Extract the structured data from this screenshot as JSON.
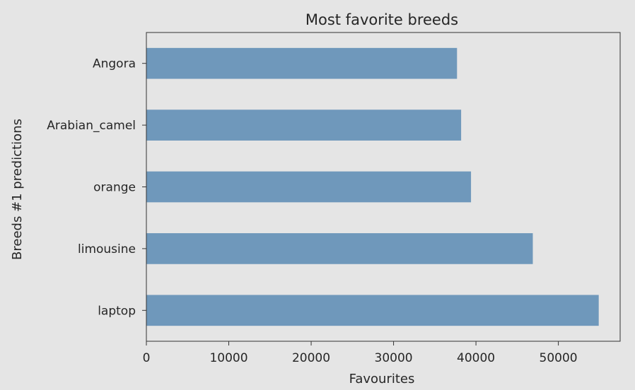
{
  "chart_data": {
    "type": "bar",
    "orientation": "horizontal",
    "title": "Most favorite breeds",
    "xlabel": "Favourites",
    "ylabel": "Breeds #1 predictions",
    "categories": [
      "Angora",
      "Arabian_camel",
      "orange",
      "limousine",
      "laptop"
    ],
    "values": [
      37700,
      38200,
      39400,
      46900,
      54900
    ],
    "xlim": [
      0,
      57500
    ],
    "xticks": [
      0,
      10000,
      20000,
      30000,
      40000,
      50000
    ],
    "xtick_labels": [
      "0",
      "10000",
      "20000",
      "30000",
      "40000",
      "50000"
    ],
    "bar_color": "#6f98bb",
    "background_color": "#e5e5e5",
    "grid": false,
    "legend": "none"
  }
}
